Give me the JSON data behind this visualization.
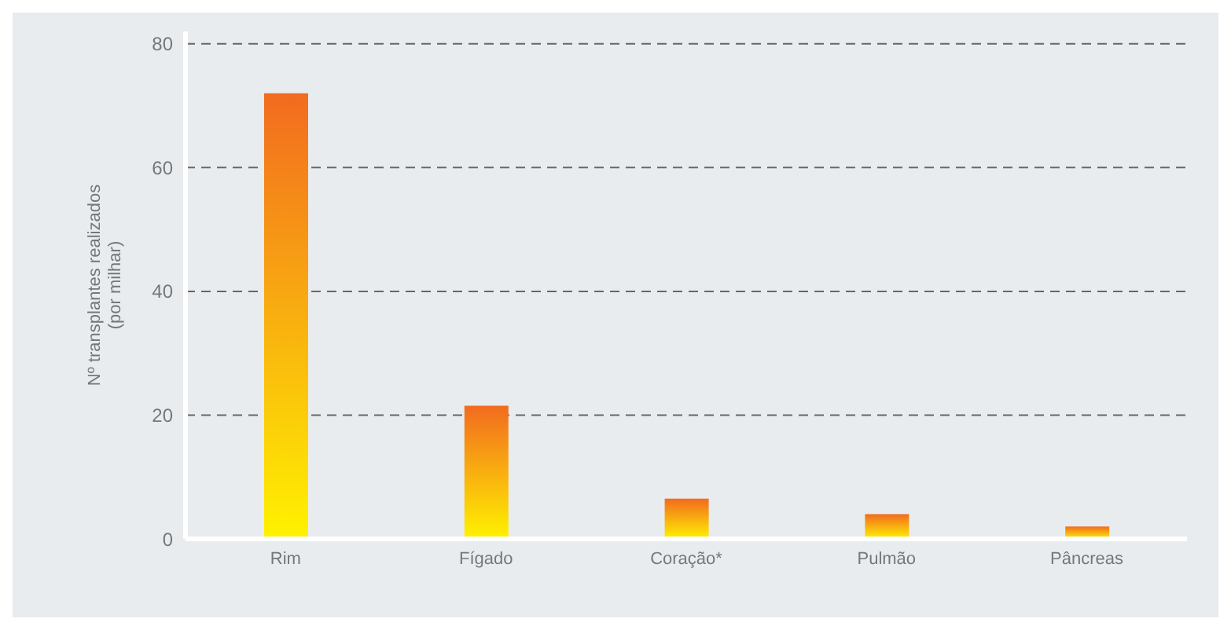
{
  "chart_data": {
    "type": "bar",
    "ylabel": "Nº transplantes realizados\n(por milhar)",
    "categories": [
      "Rim",
      "Fígado",
      "Coração*",
      "Pulmão",
      "Pâncreas"
    ],
    "values": [
      72,
      21.5,
      6.5,
      4,
      2
    ],
    "color": "#f26b1f",
    "ylim": [
      0,
      82
    ],
    "yticks": [
      0,
      20,
      40,
      60,
      80
    ],
    "grid": "y"
  }
}
